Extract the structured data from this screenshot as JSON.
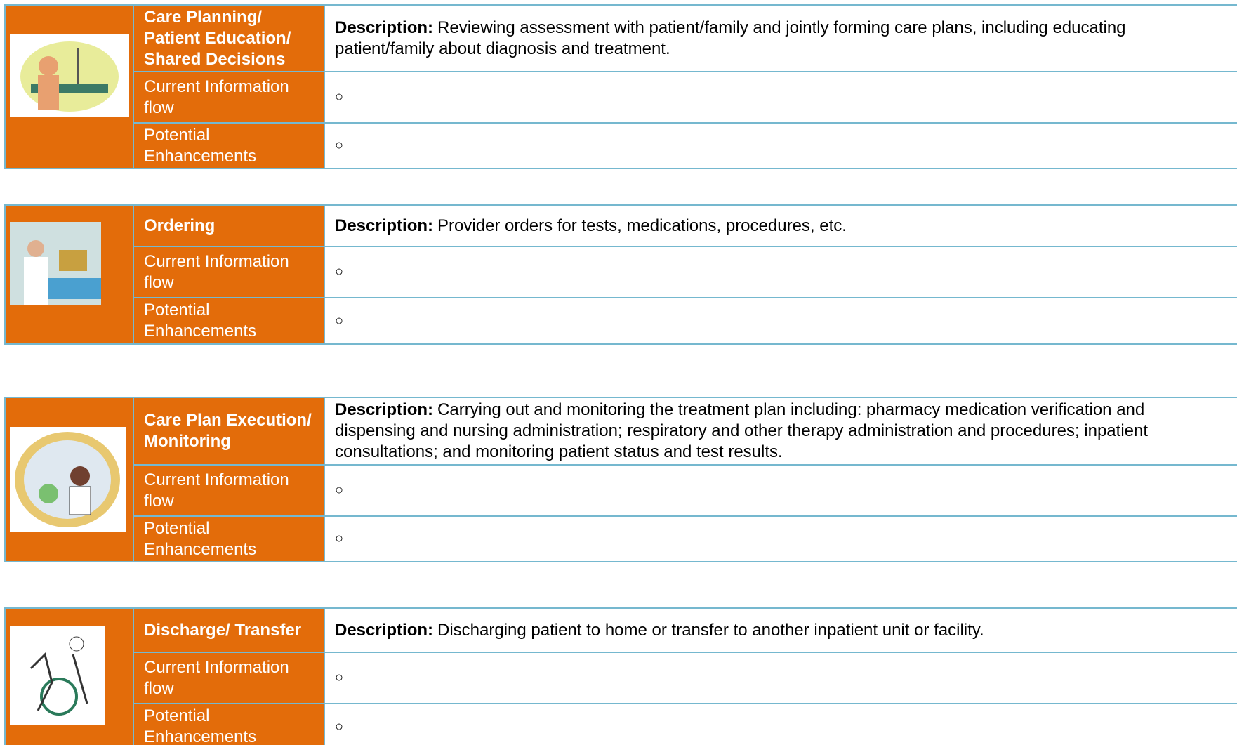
{
  "sections": [
    {
      "title": "Care Planning/ Patient Education/ Shared Decisions",
      "description_label": "Description:",
      "description": "Reviewing assessment with patient/family and jointly forming care plans, including educating patient/family about diagnosis and treatment.",
      "rows": [
        {
          "label": "Current Information flow",
          "bullet": "○"
        },
        {
          "label": "Potential Enhancements",
          "bullet": "○"
        }
      ]
    },
    {
      "title": "Ordering",
      "description_label": "Description:",
      "description": "Provider orders for tests, medications, procedures, etc.",
      "rows": [
        {
          "label": "Current Information flow",
          "bullet": "○"
        },
        {
          "label": "Potential Enhancements",
          "bullet": "○"
        }
      ]
    },
    {
      "title": "Care Plan Execution/ Monitoring",
      "description_label": "Description:",
      "description": "Carrying out and monitoring the treatment plan including: pharmacy medication verification and dispensing and nursing administration; respiratory and other therapy administration and procedures; inpatient consultations; and monitoring patient status and test results.",
      "rows": [
        {
          "label": "Current Information flow",
          "bullet": "○"
        },
        {
          "label": "Potential Enhancements",
          "bullet": "○"
        }
      ]
    },
    {
      "title": "Discharge/ Transfer",
      "description_label": "Description:",
      "description": "Discharging patient to home or transfer to another inpatient unit or facility.",
      "rows": [
        {
          "label": "Current Information flow",
          "bullet": "○"
        },
        {
          "label": "Potential Enhancements",
          "bullet": "○"
        }
      ]
    }
  ]
}
